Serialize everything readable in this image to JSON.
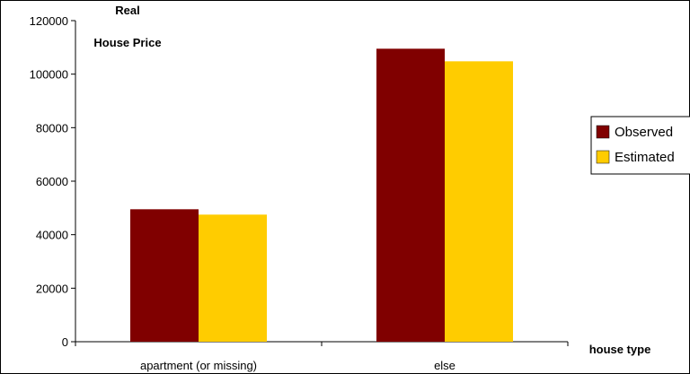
{
  "chart_data": {
    "type": "bar",
    "categories": [
      "apartment (or missing)",
      "else"
    ],
    "series": [
      {
        "name": "Observed",
        "values": [
          49500,
          109500
        ],
        "color": "#800000"
      },
      {
        "name": "Estimated",
        "values": [
          47500,
          104800
        ],
        "color": "#FFCC00"
      }
    ],
    "ylabel": "Real House Price",
    "ylabel_lines": [
      "Real",
      "House Price"
    ],
    "xlabel": "house type",
    "ylim": [
      0,
      120000
    ],
    "yticks": [
      0,
      20000,
      40000,
      60000,
      80000,
      100000,
      120000
    ],
    "grid": false,
    "legend_position": "right"
  }
}
